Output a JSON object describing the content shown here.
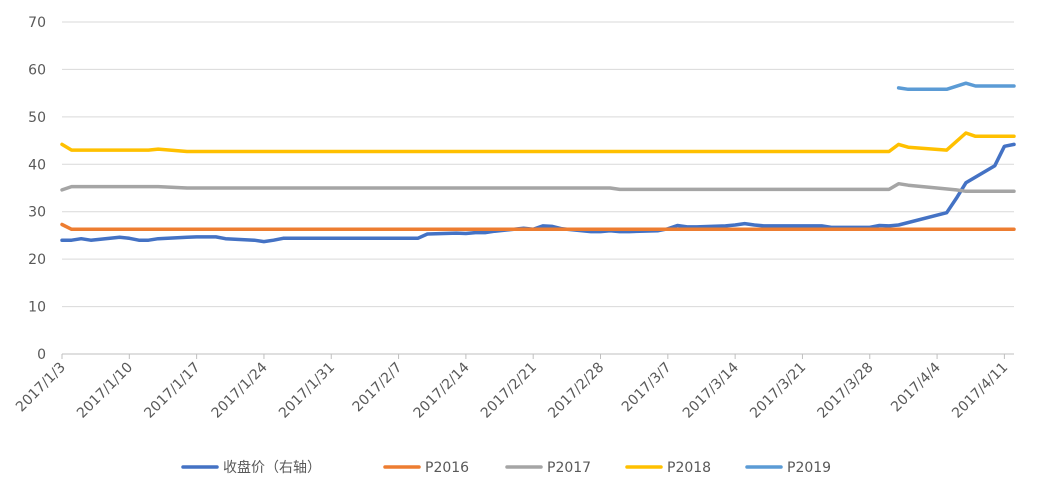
{
  "chart_data": {
    "type": "line",
    "title": "",
    "xlabel": "",
    "ylabel": "",
    "ylim": [
      0,
      70
    ],
    "y_ticks": [
      0,
      10,
      20,
      30,
      40,
      50,
      60,
      70
    ],
    "grid": true,
    "legend_position": "bottom",
    "x_start": "2017/1/3",
    "x_end": "2017/4/12",
    "x_ticks": [
      "2017/1/3",
      "2017/1/10",
      "2017/1/17",
      "2017/1/24",
      "2017/1/31",
      "2017/2/7",
      "2017/2/14",
      "2017/2/21",
      "2017/2/28",
      "2017/3/7",
      "2017/3/14",
      "2017/3/21",
      "2017/3/28",
      "2017/4/4",
      "2017/4/11"
    ],
    "series": [
      {
        "name": "收盘价（右轴）",
        "color": "#4472C4",
        "points": [
          [
            "2017/1/3",
            24.0
          ],
          [
            "2017/1/4",
            24.0
          ],
          [
            "2017/1/5",
            24.3
          ],
          [
            "2017/1/6",
            24.0
          ],
          [
            "2017/1/9",
            24.6
          ],
          [
            "2017/1/10",
            24.4
          ],
          [
            "2017/1/11",
            24.0
          ],
          [
            "2017/1/12",
            24.0
          ],
          [
            "2017/1/13",
            24.3
          ],
          [
            "2017/1/16",
            24.6
          ],
          [
            "2017/1/17",
            24.7
          ],
          [
            "2017/1/18",
            24.7
          ],
          [
            "2017/1/19",
            24.7
          ],
          [
            "2017/1/20",
            24.3
          ],
          [
            "2017/1/23",
            24.0
          ],
          [
            "2017/1/24",
            23.7
          ],
          [
            "2017/1/25",
            24.0
          ],
          [
            "2017/1/26",
            24.4
          ],
          [
            "2017/2/3",
            24.4
          ],
          [
            "2017/2/6",
            24.4
          ],
          [
            "2017/2/7",
            24.4
          ],
          [
            "2017/2/8",
            24.4
          ],
          [
            "2017/2/9",
            24.4
          ],
          [
            "2017/2/10",
            25.3
          ],
          [
            "2017/2/13",
            25.5
          ],
          [
            "2017/2/14",
            25.4
          ],
          [
            "2017/2/15",
            25.6
          ],
          [
            "2017/2/16",
            25.6
          ],
          [
            "2017/2/17",
            25.9
          ],
          [
            "2017/2/20",
            26.5
          ],
          [
            "2017/2/21",
            26.3
          ],
          [
            "2017/2/22",
            27.0
          ],
          [
            "2017/2/23",
            26.9
          ],
          [
            "2017/2/24",
            26.4
          ],
          [
            "2017/2/27",
            25.8
          ],
          [
            "2017/2/28",
            25.8
          ],
          [
            "2017/3/1",
            26.0
          ],
          [
            "2017/3/2",
            25.8
          ],
          [
            "2017/3/3",
            25.8
          ],
          [
            "2017/3/6",
            26.0
          ],
          [
            "2017/3/7",
            26.4
          ],
          [
            "2017/3/8",
            27.1
          ],
          [
            "2017/3/9",
            26.8
          ],
          [
            "2017/3/10",
            26.8
          ],
          [
            "2017/3/13",
            27.0
          ],
          [
            "2017/3/14",
            27.2
          ],
          [
            "2017/3/15",
            27.5
          ],
          [
            "2017/3/16",
            27.2
          ],
          [
            "2017/3/17",
            27.0
          ],
          [
            "2017/3/20",
            27.0
          ],
          [
            "2017/3/21",
            27.0
          ],
          [
            "2017/3/22",
            27.0
          ],
          [
            "2017/3/23",
            27.0
          ],
          [
            "2017/3/24",
            26.7
          ],
          [
            "2017/3/27",
            26.7
          ],
          [
            "2017/3/28",
            26.7
          ],
          [
            "2017/3/29",
            27.1
          ],
          [
            "2017/3/30",
            27.0
          ],
          [
            "2017/3/31",
            27.2
          ],
          [
            "2017/4/5",
            29.8
          ],
          [
            "2017/4/6",
            32.8
          ],
          [
            "2017/4/7",
            36.1
          ],
          [
            "2017/4/10",
            39.7
          ],
          [
            "2017/4/11",
            43.8
          ],
          [
            "2017/4/12",
            44.2
          ]
        ]
      },
      {
        "name": "P2016",
        "color": "#ED7D31",
        "points": [
          [
            "2017/1/3",
            27.3
          ],
          [
            "2017/1/4",
            26.3
          ],
          [
            "2017/4/12",
            26.3
          ]
        ]
      },
      {
        "name": "P2017",
        "color": "#A5A5A5",
        "points": [
          [
            "2017/1/3",
            34.6
          ],
          [
            "2017/1/4",
            35.3
          ],
          [
            "2017/1/13",
            35.3
          ],
          [
            "2017/1/16",
            35.0
          ],
          [
            "2017/3/1",
            35.0
          ],
          [
            "2017/3/2",
            34.7
          ],
          [
            "2017/3/30",
            34.7
          ],
          [
            "2017/3/31",
            35.9
          ],
          [
            "2017/4/1",
            35.6
          ],
          [
            "2017/4/6",
            34.6
          ],
          [
            "2017/4/7",
            34.3
          ],
          [
            "2017/4/12",
            34.3
          ]
        ]
      },
      {
        "name": "P2018",
        "color": "#FFC000",
        "points": [
          [
            "2017/1/3",
            44.2
          ],
          [
            "2017/1/4",
            43.0
          ],
          [
            "2017/1/12",
            43.0
          ],
          [
            "2017/1/13",
            43.2
          ],
          [
            "2017/1/16",
            42.7
          ],
          [
            "2017/3/30",
            42.7
          ],
          [
            "2017/3/31",
            44.2
          ],
          [
            "2017/4/1",
            43.6
          ],
          [
            "2017/4/5",
            43.0
          ],
          [
            "2017/4/7",
            46.6
          ],
          [
            "2017/4/8",
            45.9
          ],
          [
            "2017/4/12",
            45.9
          ]
        ]
      },
      {
        "name": "P2019",
        "color": "#5B9BD5",
        "points": [
          [
            "2017/3/31",
            56.1
          ],
          [
            "2017/4/1",
            55.8
          ],
          [
            "2017/4/5",
            55.8
          ],
          [
            "2017/4/7",
            57.1
          ],
          [
            "2017/4/8",
            56.5
          ],
          [
            "2017/4/12",
            56.5
          ]
        ]
      }
    ]
  }
}
